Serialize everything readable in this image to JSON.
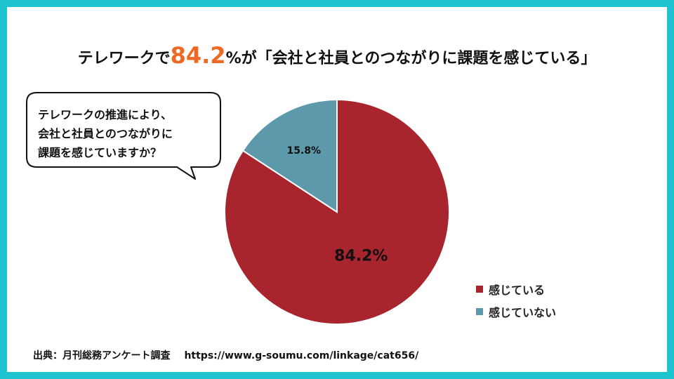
{
  "title": {
    "prefix": "テレワークで",
    "highlight": "84.2",
    "suffix": "%が「会社と社員とのつながりに課題を感じている」"
  },
  "question": {
    "lines": [
      "テレワークの推進により、",
      "会社と社員とのつながりに",
      "課題を感じていますか？"
    ]
  },
  "chart_data": {
    "type": "pie",
    "slices": [
      {
        "label": "感じている",
        "value": 84.2,
        "display": "84.2%",
        "color": "#a8252e"
      },
      {
        "label": "感じていない",
        "value": 15.8,
        "display": "15.8%",
        "color": "#5c9aab"
      }
    ],
    "legend_position": "bottom-right"
  },
  "source": {
    "label": "出典：月刊総務アンケート調査",
    "url": "https://www.g-soumu.com/linkage/cat656/"
  },
  "colors": {
    "frame": "#1ec4cf",
    "title_highlight": "#ee6a24"
  }
}
